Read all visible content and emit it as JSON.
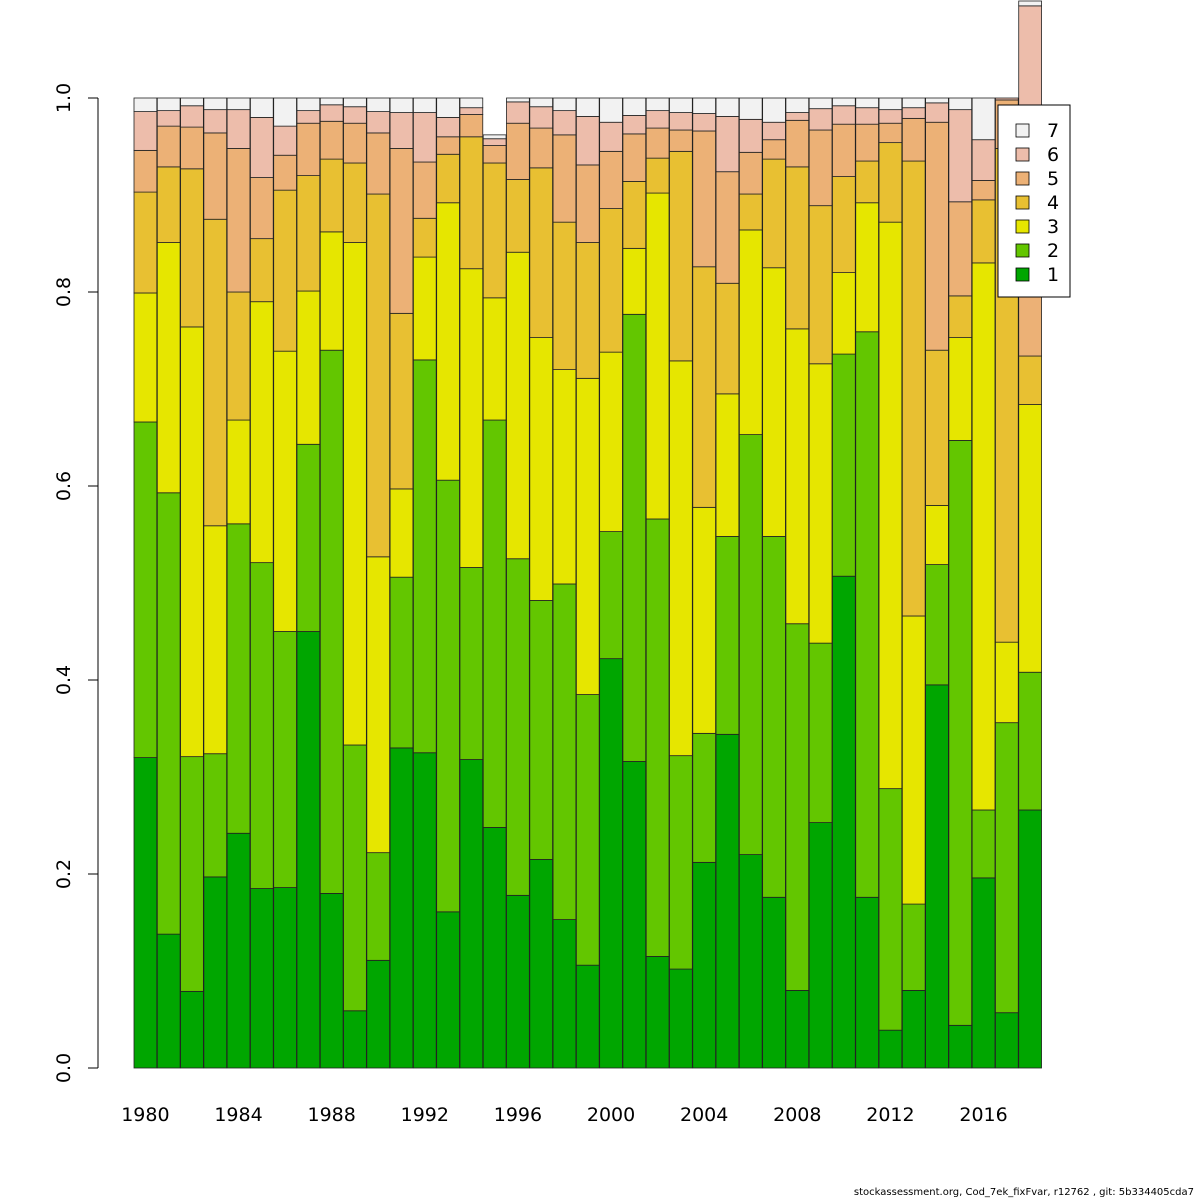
{
  "chart_data": {
    "type": "bar",
    "stacked": true,
    "ylim": [
      0,
      1
    ],
    "yticks": [
      "0.0",
      "0.2",
      "0.4",
      "0.6",
      "0.8",
      "1.0"
    ],
    "xtick_labels": [
      "1980",
      "1984",
      "1988",
      "1992",
      "1996",
      "2000",
      "2004",
      "2008",
      "2012",
      "2016"
    ],
    "categories": [
      "1980",
      "1981",
      "1982",
      "1983",
      "1984",
      "1985",
      "1986",
      "1987",
      "1988",
      "1989",
      "1990",
      "1991",
      "1992",
      "1993",
      "1994",
      "1995",
      "1996",
      "1997",
      "1998",
      "1999",
      "2000",
      "2001",
      "2002",
      "2003",
      "2004",
      "2005",
      "2006",
      "2007",
      "2008",
      "2009",
      "2010",
      "2011",
      "2012",
      "2013",
      "2014",
      "2015",
      "2016",
      "2017",
      "2018"
    ],
    "legend_position": "top-right",
    "series": [
      {
        "name": "1",
        "color": "#00a600",
        "values": [
          0.32,
          0.138,
          0.079,
          0.197,
          0.242,
          0.185,
          0.186,
          0.45,
          0.18,
          0.059,
          0.111,
          0.33,
          0.325,
          0.161,
          0.318,
          0.248,
          0.178,
          0.215,
          0.153,
          0.106,
          0.422,
          0.316,
          0.115,
          0.102,
          0.212,
          0.344,
          0.22,
          0.176,
          0.08,
          0.253,
          0.507,
          0.176,
          0.039,
          0.08,
          0.395,
          0.044,
          0.196,
          0.057,
          0.266
        ]
      },
      {
        "name": "2",
        "color": "#63c600",
        "values": [
          0.346,
          0.455,
          0.242,
          0.127,
          0.319,
          0.336,
          0.264,
          0.193,
          0.56,
          0.274,
          0.111,
          0.176,
          0.405,
          0.445,
          0.198,
          0.42,
          0.347,
          0.267,
          0.346,
          0.279,
          0.131,
          0.461,
          0.451,
          0.22,
          0.133,
          0.204,
          0.433,
          0.372,
          0.378,
          0.185,
          0.229,
          0.583,
          0.249,
          0.089,
          0.124,
          0.603,
          0.07,
          0.299,
          0.142
        ]
      },
      {
        "name": "3",
        "color": "#e6e600",
        "values": [
          0.133,
          0.258,
          0.443,
          0.235,
          0.107,
          0.269,
          0.289,
          0.158,
          0.122,
          0.518,
          0.305,
          0.091,
          0.106,
          0.286,
          0.308,
          0.126,
          0.316,
          0.271,
          0.221,
          0.326,
          0.185,
          0.068,
          0.336,
          0.407,
          0.233,
          0.147,
          0.211,
          0.277,
          0.304,
          0.288,
          0.084,
          0.133,
          0.584,
          0.297,
          0.061,
          0.106,
          0.564,
          0.083,
          0.276
        ]
      },
      {
        "name": "4",
        "color": "#e8c032",
        "values": [
          0.104,
          0.078,
          0.163,
          0.316,
          0.132,
          0.065,
          0.166,
          0.119,
          0.075,
          0.082,
          0.374,
          0.181,
          0.04,
          0.05,
          0.136,
          0.139,
          0.075,
          0.175,
          0.152,
          0.14,
          0.148,
          0.069,
          0.036,
          0.216,
          0.248,
          0.114,
          0.037,
          0.112,
          0.167,
          0.163,
          0.099,
          0.043,
          0.082,
          0.469,
          0.16,
          0.043,
          0.065,
          0.509,
          0.05
        ]
      },
      {
        "name": "5",
        "color": "#ecb176",
        "values": [
          0.043,
          0.042,
          0.043,
          0.089,
          0.148,
          0.063,
          0.036,
          0.054,
          0.039,
          0.041,
          0.063,
          0.17,
          0.058,
          0.018,
          0.023,
          0.018,
          0.058,
          0.041,
          0.09,
          0.08,
          0.059,
          0.049,
          0.031,
          0.022,
          0.14,
          0.115,
          0.043,
          0.02,
          0.048,
          0.078,
          0.054,
          0.038,
          0.02,
          0.044,
          0.235,
          0.097,
          0.02,
          0.05,
          0.258
        ]
      },
      {
        "name": "6",
        "color": "#edbdab",
        "values": [
          0.04,
          0.016,
          0.022,
          0.024,
          0.04,
          0.062,
          0.03,
          0.013,
          0.017,
          0.017,
          0.022,
          0.037,
          0.051,
          0.02,
          0.007,
          0.007,
          0.022,
          0.022,
          0.025,
          0.05,
          0.03,
          0.019,
          0.018,
          0.018,
          0.018,
          0.057,
          0.034,
          0.018,
          0.008,
          0.022,
          0.019,
          0.017,
          0.014,
          0.011,
          0.02,
          0.095,
          0.042,
          0.002,
          0.103
        ]
      },
      {
        "name": "7",
        "color": "#f2f2f2",
        "values": [
          0.014,
          0.013,
          0.008,
          0.012,
          0.012,
          0.02,
          0.029,
          0.013,
          0.007,
          0.009,
          0.014,
          0.015,
          0.015,
          0.02,
          0.01,
          0.004,
          0.004,
          0.009,
          0.013,
          0.019,
          0.025,
          0.018,
          0.013,
          0.015,
          0.016,
          0.019,
          0.022,
          0.025,
          0.015,
          0.011,
          0.008,
          0.01,
          0.012,
          0.01,
          0.005,
          0.012,
          0.043,
          0.0,
          0.005
        ]
      }
    ]
  },
  "footer": "stockassessment.org, Cod_7ek_fixFvar, r12762 , git: 5b334405cda7"
}
